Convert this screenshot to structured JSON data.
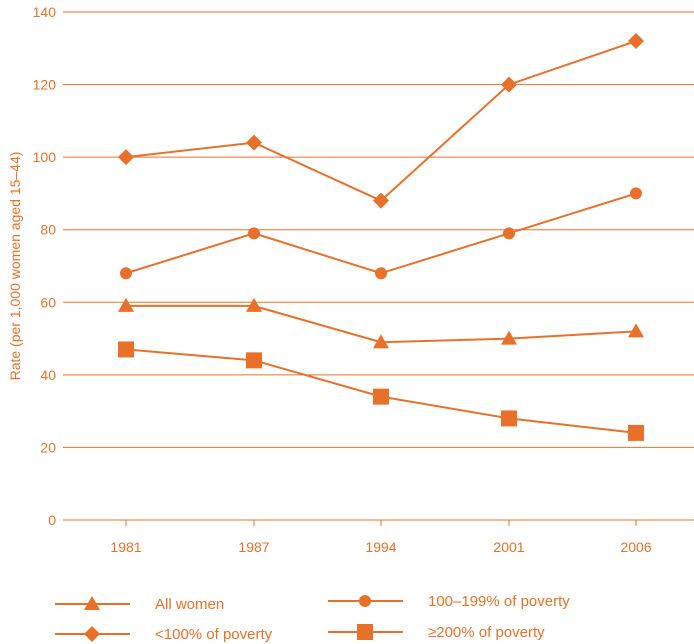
{
  "chart_data": {
    "type": "line",
    "title": "",
    "xlabel": "",
    "ylabel": "Rate (per 1,000 women aged 15–44)",
    "categories": [
      "1981",
      "1987",
      "1994",
      "2001",
      "2006"
    ],
    "y_ticks": [
      "0",
      "20",
      "40",
      "60",
      "80",
      "100",
      "120",
      "140"
    ],
    "ylim": [
      0,
      140
    ],
    "grid": "horizontal",
    "legend_position": "bottom",
    "color": "#e8702a",
    "series": [
      {
        "name": "<100% of poverty",
        "marker": "diamond",
        "values": [
          100,
          104,
          88,
          120,
          132
        ]
      },
      {
        "name": "100–199% of poverty",
        "marker": "circle",
        "values": [
          68,
          79,
          68,
          79,
          90
        ]
      },
      {
        "name": "All women",
        "marker": "triangle",
        "values": [
          59,
          59,
          49,
          50,
          52
        ]
      },
      {
        "name": "≥200% of poverty",
        "marker": "square",
        "values": [
          47,
          44,
          34,
          28,
          24
        ]
      }
    ]
  }
}
